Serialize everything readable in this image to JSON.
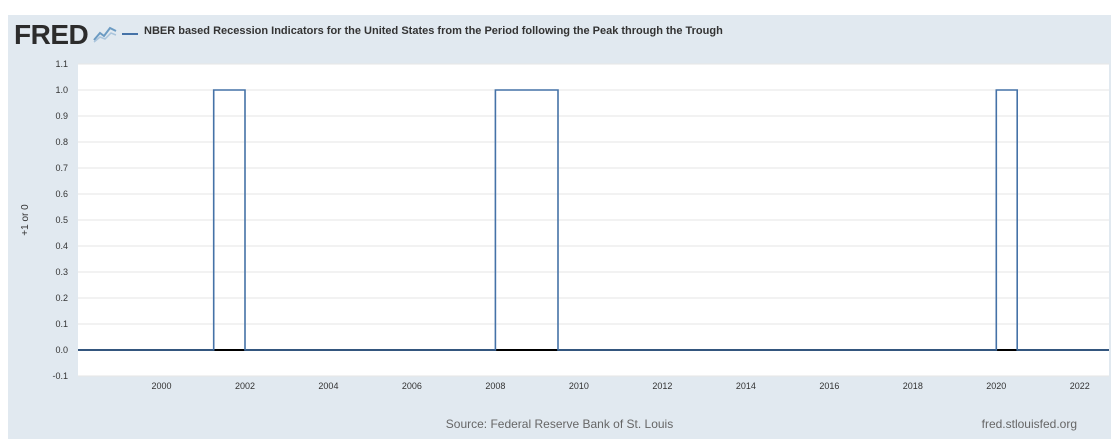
{
  "header": {
    "logo": "FRED",
    "series_title": "NBER based Recession Indicators for the United States from the Period following the Peak through the Trough"
  },
  "footer": {
    "source": "Source: Federal Reserve Bank of St. Louis",
    "link": "fred.stlouisfed.org"
  },
  "colors": {
    "series": "#4572a7",
    "frame_background": "#e1e9f0",
    "plot_background": "#ffffff",
    "gridline": "#e6e6e6",
    "zero_line": "#000000"
  },
  "chart_data": {
    "type": "line",
    "step": true,
    "title": "",
    "xlabel": "",
    "ylabel": "+1 or 0",
    "xlim": [
      1998.0,
      2022.7
    ],
    "ylim": [
      -0.1,
      1.1
    ],
    "x_ticks": [
      "2000",
      "2002",
      "2004",
      "2006",
      "2008",
      "2010",
      "2012",
      "2014",
      "2016",
      "2018",
      "2020",
      "2022"
    ],
    "y_ticks": [
      "-0.1",
      "0.0",
      "0.1",
      "0.2",
      "0.3",
      "0.4",
      "0.5",
      "0.6",
      "0.7",
      "0.8",
      "0.9",
      "1.0",
      "1.1"
    ],
    "grid": true,
    "series": [
      {
        "name": "NBER based Recession Indicators for the United States from the Period following the Peak through the Trough",
        "points": [
          [
            1998.0,
            0
          ],
          [
            2001.25,
            0
          ],
          [
            2001.25,
            1
          ],
          [
            2002.0,
            1
          ],
          [
            2002.0,
            0
          ],
          [
            2008.0,
            0
          ],
          [
            2008.0,
            1
          ],
          [
            2009.5,
            1
          ],
          [
            2009.5,
            0
          ],
          [
            2020.0,
            0
          ],
          [
            2020.0,
            1
          ],
          [
            2020.5,
            1
          ],
          [
            2020.5,
            0
          ],
          [
            2022.7,
            0
          ]
        ]
      }
    ]
  }
}
